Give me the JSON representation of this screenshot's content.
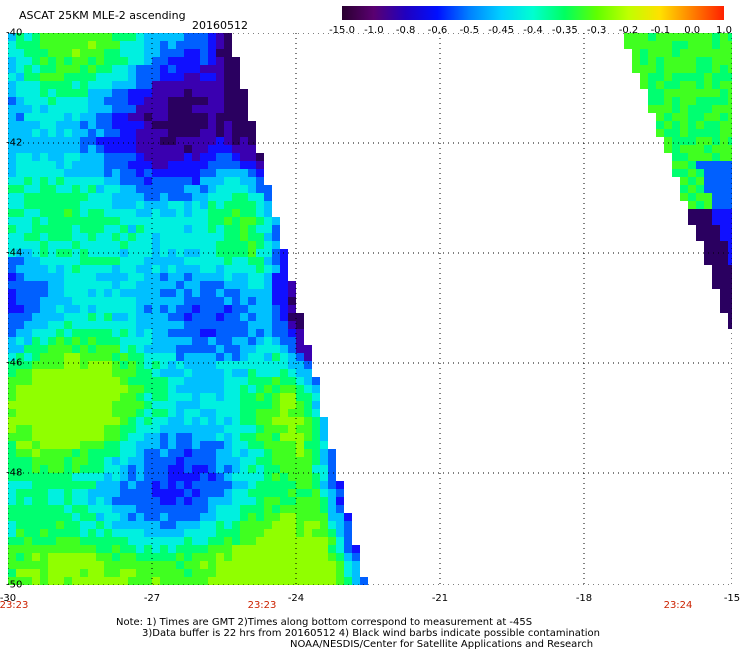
{
  "header": {
    "title": "ASCAT 25KM MLE-2 ascending",
    "date": "20160512"
  },
  "colorbar": {
    "labels": [
      "-15.0",
      "-1.0",
      "-0.8",
      "-0.6",
      "-0.5",
      "-0.45",
      "-0.4",
      "-0.35",
      "-0.3",
      "-0.2",
      "-0.1",
      "0.0",
      "1.0"
    ],
    "colors": [
      "#2a0030",
      "#5a0070",
      "#2000c0",
      "#0010ff",
      "#0080ff",
      "#00d0ff",
      "#00ffd0",
      "#00ff60",
      "#60ff00",
      "#c0ff00",
      "#ffe000",
      "#ff8000",
      "#ff2000"
    ]
  },
  "map": {
    "lat_labels": [
      "-40",
      "-42",
      "-44",
      "-46",
      "-48",
      "-50"
    ],
    "lon_labels": [
      "-30",
      "-27",
      "-24",
      "-21",
      "-18",
      "-15"
    ],
    "time_labels": [
      "23:23",
      "23:23",
      "23:24"
    ]
  },
  "notes": {
    "line1": "Note: 1) Times are GMT 2)Times along bottom correspond to measurement at -45S",
    "line2": "3)Data buffer is 22 hrs from 20160512 4) Black wind barbs indicate possible contamination",
    "line3": "NOAA/NESDIS/Center for Satellite Applications and Research"
  }
}
